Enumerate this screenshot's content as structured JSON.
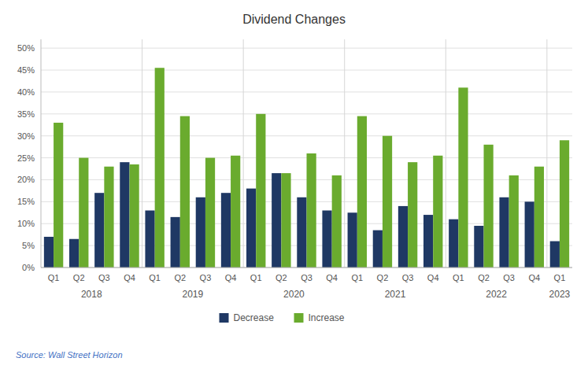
{
  "chart_data": {
    "type": "bar",
    "title": "Dividend Changes",
    "source": "Source: Wall Street Horizon",
    "categories": [
      "Q1",
      "Q2",
      "Q3",
      "Q4",
      "Q1",
      "Q2",
      "Q3",
      "Q4",
      "Q1",
      "Q2",
      "Q3",
      "Q4",
      "Q1",
      "Q2",
      "Q3",
      "Q4",
      "Q1",
      "Q2",
      "Q3",
      "Q4",
      "Q1"
    ],
    "annotations": [
      "2018",
      "2019",
      "2020",
      "2021",
      "2022",
      "2023"
    ],
    "series": [
      {
        "name": "Decrease",
        "color": "#1F3864",
        "values": [
          7,
          6.5,
          17,
          24,
          13,
          11.5,
          16,
          17,
          18,
          21.5,
          16,
          13,
          12.5,
          8.5,
          14,
          12,
          11,
          9.5,
          16,
          15,
          6
        ]
      },
      {
        "name": "Increase",
        "color": "#6AAB2E",
        "values": [
          33,
          25,
          23,
          23.5,
          45.5,
          34.5,
          25,
          25.5,
          35,
          21.5,
          26,
          21,
          34.5,
          30,
          24,
          25.5,
          41,
          28,
          21,
          23,
          29
        ]
      }
    ],
    "ylim": [
      0,
      52
    ],
    "yticks": [
      {
        "value": 0,
        "label": "0%"
      },
      {
        "value": 5,
        "label": "5%"
      },
      {
        "value": 10,
        "label": "10%"
      },
      {
        "value": 15,
        "label": "15%"
      },
      {
        "value": 20,
        "label": "20%"
      },
      {
        "value": 25,
        "label": "25%"
      },
      {
        "value": 30,
        "label": "30%"
      },
      {
        "value": 35,
        "label": "35%"
      },
      {
        "value": 40,
        "label": "40%"
      },
      {
        "value": 45,
        "label": "45%"
      },
      {
        "value": 50,
        "label": "50%"
      }
    ],
    "grid": true,
    "legend": "bottom"
  }
}
